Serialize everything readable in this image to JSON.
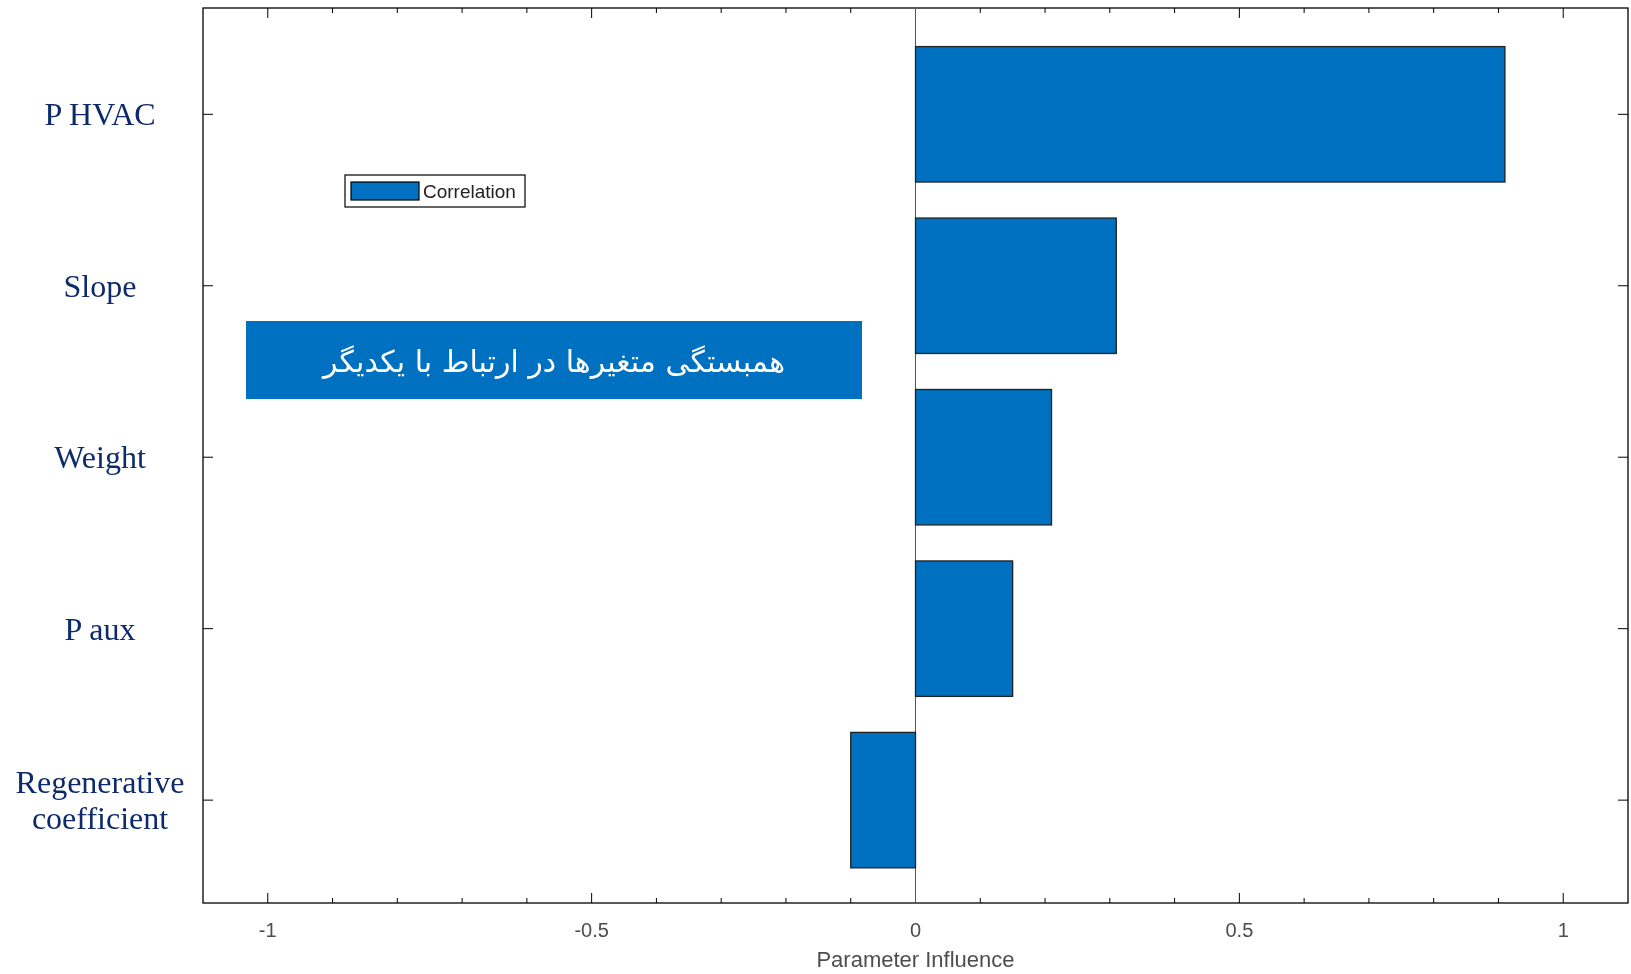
{
  "chart_data": {
    "type": "bar",
    "orientation": "horizontal",
    "categories": [
      "P HVAC",
      "Slope",
      "Weight",
      "P aux",
      "Regenerative coefficient"
    ],
    "series": [
      {
        "name": "Correlation",
        "color": "#0070c0",
        "values": [
          0.91,
          0.31,
          0.21,
          0.15,
          -0.1
        ]
      }
    ],
    "xlim": [
      -1.1,
      1.1
    ],
    "xticks": [
      -1,
      -0.5,
      0,
      0.5,
      1
    ],
    "xlabel": "Parameter Influence",
    "legend": "top left",
    "ref_lines": [
      {
        "axis": "x",
        "value": 0
      }
    ],
    "annotations": [
      "همبستگی متغیرها در ارتباط با یکدیگر"
    ]
  }
}
